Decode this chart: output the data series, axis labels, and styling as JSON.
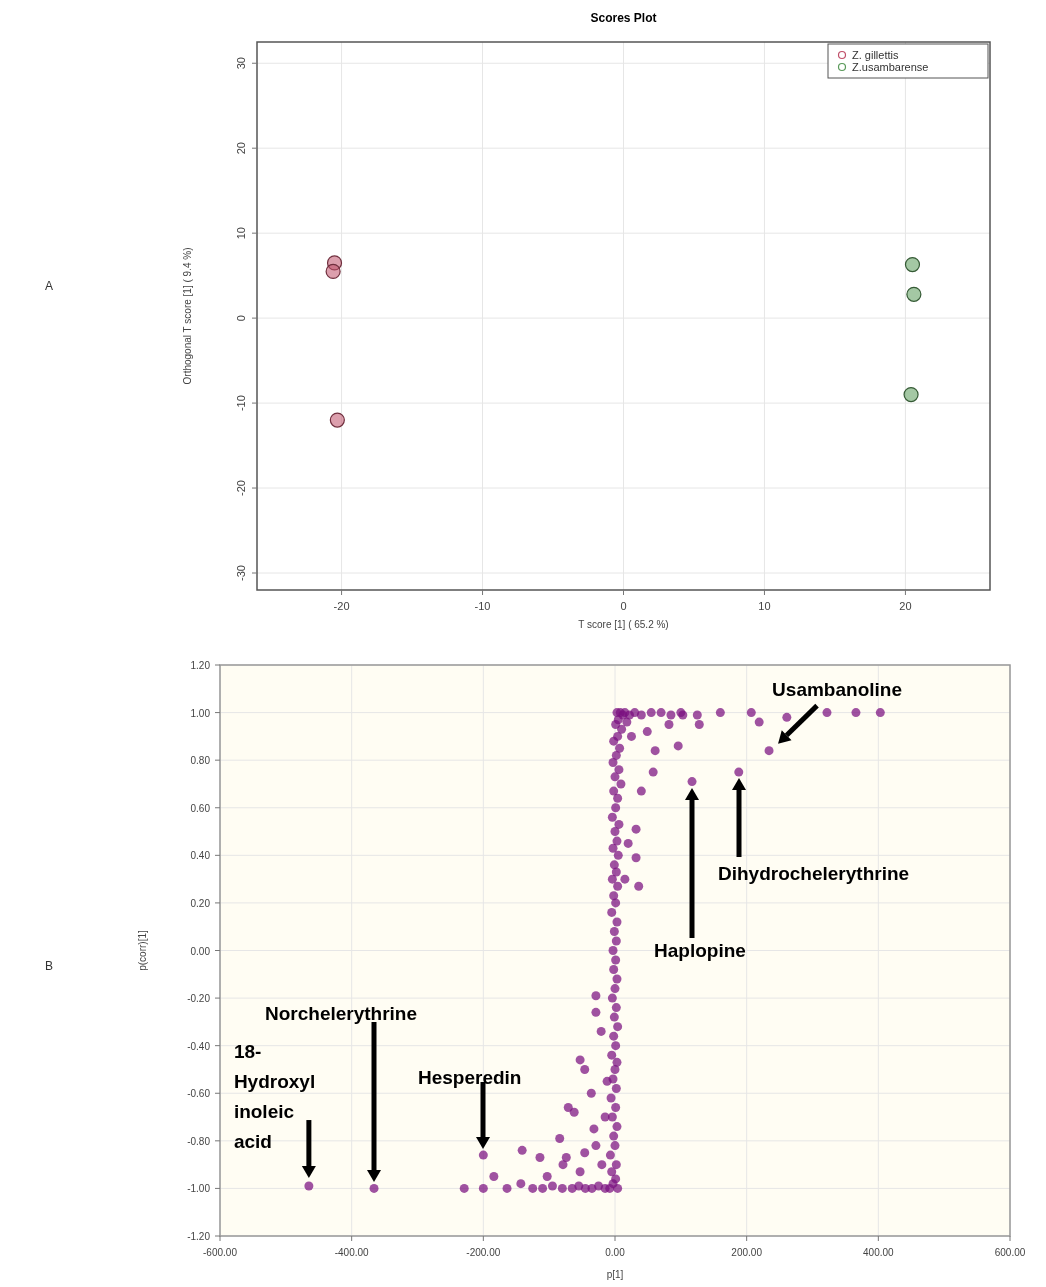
{
  "chart_data": [
    {
      "type": "scatter",
      "title": "Scores Plot",
      "xlabel": "T score [1] ( 65.2 %)",
      "ylabel": "Orthogonal T score [1] ( 9.4 %)",
      "annotations": [
        "A"
      ],
      "marker": "circle",
      "legend": "top right",
      "grid": true,
      "xlim": [
        -26,
        26
      ],
      "xticks": [
        -20,
        -10,
        0,
        10,
        20
      ],
      "ylim": [
        -32,
        32.5
      ],
      "yticks": [
        -30,
        -20,
        -10,
        0,
        10,
        20,
        30
      ],
      "series": [
        {
          "name": "Z. gillettis",
          "color": "#c0506a",
          "x": [
            -20.5,
            -20.6,
            -20.3
          ],
          "values": [
            6.5,
            5.5,
            -12
          ]
        },
        {
          "name": "Z.usambarense",
          "color": "#5a9a5a",
          "x": [
            20.5,
            20.6,
            20.4
          ],
          "values": [
            6.3,
            2.8,
            -9
          ]
        }
      ]
    },
    {
      "type": "scatter",
      "xlabel": "p[1]",
      "ylabel": "p(corr)[1]",
      "marker": "circle",
      "grid": true,
      "color": "#7a0f80",
      "annotations": [
        "B",
        "Dihydrochelerythrine",
        "Haplopine",
        "Norchelerythrine",
        "Hesperedin",
        {
          "text": "Usambanoline",
          "x": 234,
          "y": 0.84
        },
        {
          "text": "18- Hydroxyl inoleic acid",
          "x": -465,
          "y": -0.99
        }
      ],
      "xlim": [
        -600,
        600
      ],
      "xticks": [
        {
          "value": -600,
          "label": "-600.00"
        },
        {
          "value": -400,
          "label": "-400.00"
        },
        {
          "value": -200,
          "label": "-200.00"
        },
        {
          "value": 0,
          "label": "0.00"
        },
        {
          "value": 200,
          "label": "200.00"
        },
        {
          "value": 400,
          "label": "400.00"
        },
        {
          "value": 600,
          "label": "600.00"
        }
      ],
      "ylim": [
        -1.2,
        1.2
      ],
      "yticks": [
        {
          "value": -1.2,
          "label": "-1.20"
        },
        {
          "value": -1.0,
          "label": "-1.00"
        },
        {
          "value": -0.8,
          "label": "-0.80"
        },
        {
          "value": -0.6,
          "label": "-0.60"
        },
        {
          "value": -0.4,
          "label": "-0.40"
        },
        {
          "value": -0.2,
          "label": "-0.20"
        },
        {
          "value": 0,
          "label": "0.00"
        },
        {
          "value": 0.2,
          "label": "0.20"
        },
        {
          "value": 0.4,
          "label": "0.40"
        },
        {
          "value": 0.6,
          "label": "0.60"
        },
        {
          "value": 0.8,
          "label": "0.80"
        },
        {
          "value": 1.0,
          "label": "1.00"
        },
        {
          "value": 1.2,
          "label": "1.20"
        }
      ],
      "x": [
        3,
        8,
        12,
        5,
        1,
        10,
        4,
        -2,
        7,
        2,
        -3,
        6,
        0,
        9,
        -2,
        4,
        1,
        -4,
        6,
        0,
        3,
        -3,
        5,
        -1,
        2,
        -4,
        4,
        -2,
        1,
        -5,
        3,
        -1,
        2,
        -3,
        1,
        -2,
        3,
        0,
        -4,
        2,
        -1,
        4,
        -2,
        1,
        -5,
        3,
        0,
        -3,
        2,
        -6,
        1,
        -4,
        3,
        -2,
        0,
        -7,
        2,
        -5,
        1,
        -3,
        4,
        -8,
        15,
        22,
        30,
        40,
        55,
        70,
        85,
        100,
        125,
        160,
        207,
        322,
        366,
        403,
        18,
        25,
        128,
        261,
        219,
        96,
        61,
        58,
        40,
        32,
        32,
        36,
        49,
        82,
        103,
        234,
        188,
        117,
        20,
        15,
        -15,
        -25,
        -35,
        -45,
        -55,
        -65,
        -80,
        -95,
        -110,
        -125,
        -143,
        -164,
        -184,
        -200,
        -229,
        -200,
        -366,
        -465,
        -141,
        -114,
        -103,
        -84,
        -74,
        -79,
        -71,
        -62,
        -53,
        -46,
        -29,
        -29,
        -21,
        -36,
        -32,
        -29,
        -46,
        -53,
        -20,
        -15,
        -12
      ],
      "values": [
        1.0,
        1.0,
        0.99,
        0.97,
        0.95,
        0.93,
        0.9,
        0.88,
        0.85,
        0.82,
        0.79,
        0.76,
        0.73,
        0.7,
        0.67,
        0.64,
        0.6,
        0.56,
        0.53,
        0.5,
        0.46,
        0.43,
        0.4,
        0.36,
        0.33,
        0.3,
        0.27,
        0.23,
        0.2,
        0.16,
        0.12,
        0.08,
        0.04,
        0.0,
        -0.04,
        -0.08,
        -0.12,
        -0.16,
        -0.2,
        -0.24,
        -0.28,
        -0.32,
        -0.36,
        -0.4,
        -0.44,
        -0.47,
        -0.5,
        -0.54,
        -0.58,
        -0.62,
        -0.66,
        -0.7,
        -0.74,
        -0.78,
        -0.82,
        -0.86,
        -0.9,
        -0.93,
        -0.96,
        -0.98,
        -1.0,
        -1.0,
        1.0,
        0.99,
        1.0,
        0.99,
        1.0,
        1.0,
        0.99,
        1.0,
        0.99,
        1.0,
        1.0,
        1.0,
        1.0,
        1.0,
        0.96,
        0.9,
        0.95,
        0.98,
        0.96,
        0.86,
        0.84,
        0.75,
        0.67,
        0.51,
        0.39,
        0.27,
        0.92,
        0.95,
        0.99,
        0.84,
        0.75,
        0.71,
        0.45,
        0.3,
        -1.0,
        -0.99,
        -1.0,
        -1.0,
        -0.99,
        -1.0,
        -1.0,
        -0.99,
        -1.0,
        -1.0,
        -0.98,
        -1.0,
        -0.95,
        -1.0,
        -1.0,
        -0.86,
        -1.0,
        -0.99,
        -0.84,
        -0.87,
        -0.95,
        -0.79,
        -0.87,
        -0.9,
        -0.66,
        -0.68,
        -0.46,
        -0.5,
        -0.19,
        -0.26,
        -0.34,
        -0.6,
        -0.75,
        -0.82,
        -0.85,
        -0.93,
        -0.9,
        -0.7,
        -0.55
      ]
    }
  ]
}
